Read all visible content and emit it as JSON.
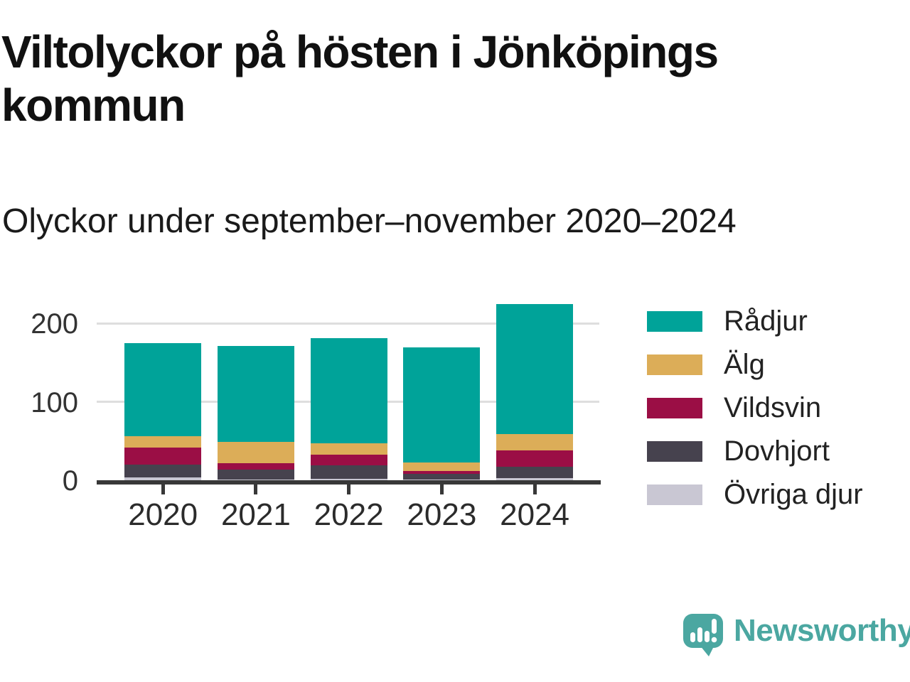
{
  "title": "Viltolyckor på hösten i Jönköpings kommun",
  "subtitle": "Olyckor under september–november 2020–2024",
  "chart_data": {
    "type": "bar",
    "stacked": true,
    "title": "Viltolyckor på hösten i Jönköpings kommun",
    "subtitle": "Olyckor under september–november 2020–2024",
    "categories": [
      "2020",
      "2021",
      "2022",
      "2023",
      "2024"
    ],
    "series": [
      {
        "name": "Rådjur",
        "color": "#00a399",
        "values": [
          119,
          122,
          134,
          147,
          166
        ]
      },
      {
        "name": "Älg",
        "color": "#dcad58",
        "values": [
          14,
          27,
          14,
          11,
          21
        ]
      },
      {
        "name": "Vildsvin",
        "color": "#9b0e45",
        "values": [
          22,
          8,
          14,
          4,
          21
        ]
      },
      {
        "name": "Dovhjort",
        "color": "#46424e",
        "values": [
          16,
          13,
          17,
          7,
          14
        ]
      },
      {
        "name": "Övriga djur",
        "color": "#c9c7d3",
        "values": [
          4,
          1,
          2,
          1,
          3
        ]
      }
    ],
    "yticks": [
      0,
      100,
      200
    ],
    "ylim": [
      0,
      240
    ],
    "grid": "horizontal-only",
    "legend_position": "right",
    "axis_color": "#383838",
    "gridline_color": "#dedede"
  },
  "branding": {
    "logo_text": "Newsworthy",
    "logo_color": "#4ba7a1",
    "logo_icon": "speech-bubble-bar-chart-icon"
  }
}
